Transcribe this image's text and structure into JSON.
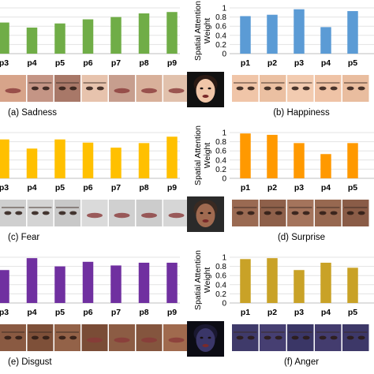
{
  "chart_data": [
    {
      "type": "bar",
      "caption": "(a) Sadness",
      "categories": [
        "p3",
        "p4",
        "p5",
        "p6",
        "p7",
        "p8",
        "p9"
      ],
      "values": [
        0.68,
        0.57,
        0.66,
        0.75,
        0.8,
        0.88,
        0.91
      ],
      "ylim": [
        0,
        1
      ],
      "color": "#70ad47",
      "ylabel": "",
      "yticks": [],
      "faces": [
        {
          "name": "face-crop-p3",
          "skin": "#d7a48a",
          "feature": "mouth"
        },
        {
          "name": "face-crop-p4",
          "skin": "#c49585",
          "feature": "eyes"
        },
        {
          "name": "face-crop-p5",
          "skin": "#a87868",
          "feature": "eyes"
        },
        {
          "name": "face-crop-p6",
          "skin": "#e7c3ad",
          "feature": "eyes"
        },
        {
          "name": "face-crop-p7",
          "skin": "#c79e8e",
          "feature": "mouth"
        },
        {
          "name": "face-crop-p8",
          "skin": "#d8b09a",
          "feature": "mouth"
        },
        {
          "name": "face-crop-p9",
          "skin": "#e1c1ac",
          "feature": "mouth"
        }
      ]
    },
    {
      "type": "bar",
      "caption": "(b) Happiness",
      "categories": [
        "p1",
        "p2",
        "p3",
        "p4",
        "p5"
      ],
      "values": [
        0.82,
        0.85,
        0.97,
        0.58,
        0.93
      ],
      "ylim": [
        0,
        1
      ],
      "color": "#5b9bd5",
      "ylabel": "Spatial Attention Weight",
      "yticks": [
        "0",
        "0.2",
        "0.4",
        "0.6",
        "0.8",
        "1"
      ],
      "faces": [
        {
          "name": "face-crop-p1",
          "skin": "#f0c5a8",
          "feature": "eyes"
        },
        {
          "name": "face-crop-p2",
          "skin": "#ebc0a2",
          "feature": "eyes"
        },
        {
          "name": "face-crop-p3",
          "skin": "#f2cbb0",
          "feature": "eyes"
        },
        {
          "name": "face-crop-p4",
          "skin": "#efc3a6",
          "feature": "eyes"
        },
        {
          "name": "face-crop-p5",
          "skin": "#e9bd9f",
          "feature": "eyes"
        }
      ]
    },
    {
      "type": "bar",
      "caption": "(c) Fear",
      "categories": [
        "p3",
        "p4",
        "p5",
        "p6",
        "p7",
        "p8",
        "p9"
      ],
      "values": [
        0.85,
        0.65,
        0.85,
        0.78,
        0.67,
        0.77,
        0.91
      ],
      "ylim": [
        0,
        1
      ],
      "color": "#ffc000",
      "ylabel": "",
      "yticks": [],
      "faces": [
        {
          "name": "face-crop-p3",
          "skin": "#cfcfcf",
          "feature": "eyes"
        },
        {
          "name": "face-crop-p4",
          "skin": "#d4d4d4",
          "feature": "eyes"
        },
        {
          "name": "face-crop-p5",
          "skin": "#c8c8c8",
          "feature": "eyes"
        },
        {
          "name": "face-crop-p6",
          "skin": "#dadada",
          "feature": "mouth"
        },
        {
          "name": "face-crop-p7",
          "skin": "#d0d0d0",
          "feature": "mouth"
        },
        {
          "name": "face-crop-p8",
          "skin": "#cccccc",
          "feature": "mouth"
        },
        {
          "name": "face-crop-p9",
          "skin": "#d6d6d6",
          "feature": "mouth"
        }
      ]
    },
    {
      "type": "bar",
      "caption": "(d) Surprise",
      "categories": [
        "p1",
        "p2",
        "p3",
        "p4",
        "p5"
      ],
      "values": [
        0.98,
        0.95,
        0.77,
        0.53,
        0.77
      ],
      "ylim": [
        0,
        1
      ],
      "color": "#ff9900",
      "ylabel": "Spatial Attention Weight",
      "yticks": [
        "0",
        "0.2",
        "0.4",
        "0.6",
        "0.8",
        "1"
      ],
      "faces": [
        {
          "name": "face-crop-p1",
          "skin": "#9a6a52",
          "feature": "eyes"
        },
        {
          "name": "face-crop-p2",
          "skin": "#8e604a",
          "feature": "eyes"
        },
        {
          "name": "face-crop-p3",
          "skin": "#a4745c",
          "feature": "eyes"
        },
        {
          "name": "face-crop-p4",
          "skin": "#976850",
          "feature": "eyes"
        },
        {
          "name": "face-crop-p5",
          "skin": "#8a5c47",
          "feature": "eyes"
        }
      ]
    },
    {
      "type": "bar",
      "caption": "(e) Disgust",
      "categories": [
        "p3",
        "p4",
        "p5",
        "p6",
        "p7",
        "p8",
        "p9"
      ],
      "values": [
        0.72,
        0.98,
        0.8,
        0.9,
        0.82,
        0.88,
        0.88
      ],
      "ylim": [
        0,
        1
      ],
      "color": "#7030a0",
      "ylabel": "",
      "yticks": [],
      "faces": [
        {
          "name": "face-crop-p3",
          "skin": "#8a5a42",
          "feature": "eyes"
        },
        {
          "name": "face-crop-p4",
          "skin": "#7e5039",
          "feature": "eyes"
        },
        {
          "name": "face-crop-p5",
          "skin": "#936248",
          "feature": "eyes"
        },
        {
          "name": "face-crop-p6",
          "skin": "#7a4c36",
          "feature": "mouth"
        },
        {
          "name": "face-crop-p7",
          "skin": "#8c5c44",
          "feature": "mouth"
        },
        {
          "name": "face-crop-p8",
          "skin": "#84553e",
          "feature": "mouth"
        },
        {
          "name": "face-crop-p9",
          "skin": "#a06a4e",
          "feature": "mouth"
        }
      ]
    },
    {
      "type": "bar",
      "caption": "(f) Anger",
      "categories": [
        "p1",
        "p2",
        "p3",
        "p4",
        "p5"
      ],
      "values": [
        0.96,
        0.98,
        0.72,
        0.88,
        0.77
      ],
      "ylim": [
        0,
        1
      ],
      "color": "#c9a227",
      "ylabel": "Spatial Attention Weight",
      "yticks": [
        "0",
        "0.2",
        "0.4",
        "0.6",
        "0.8",
        "1"
      ],
      "faces": [
        {
          "name": "face-crop-p1",
          "skin": "#3f3a6a",
          "feature": "eyes"
        },
        {
          "name": "face-crop-p2",
          "skin": "#463f72",
          "feature": "eyes"
        },
        {
          "name": "face-crop-p3",
          "skin": "#3a3666",
          "feature": "eyes"
        },
        {
          "name": "face-crop-p4",
          "skin": "#433c6e",
          "feature": "eyes"
        },
        {
          "name": "face-crop-p5",
          "skin": "#3d3868",
          "feature": "eyes"
        }
      ]
    }
  ],
  "portraits": [
    {
      "panel": 1,
      "name": "happiness-portrait",
      "skin": "#f0c6a8",
      "hair": "#2a1a14",
      "bg": "#111111"
    },
    {
      "panel": 3,
      "name": "surprise-portrait",
      "skin": "#a06a50",
      "hair": "#3a2a22",
      "bg": "#2a2a2a"
    },
    {
      "panel": 5,
      "name": "anger-portrait",
      "skin": "#3a3668",
      "hair": "#1a1830",
      "bg": "#0c0c14"
    }
  ]
}
